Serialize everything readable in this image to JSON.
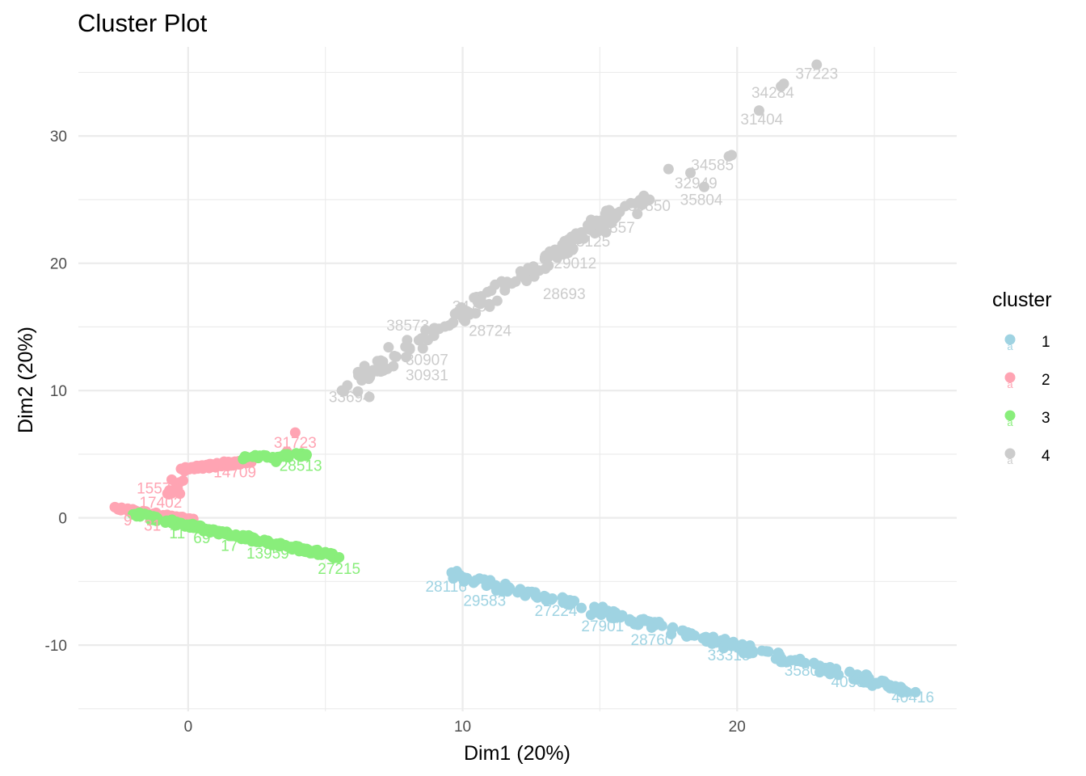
{
  "chart_data": {
    "type": "scatter",
    "title": "Cluster Plot",
    "xlabel": "Dim1 (20%)",
    "ylabel": "Dim2 (20%)",
    "xlim": [
      -4,
      28
    ],
    "ylim": [
      -15.2,
      37
    ],
    "x_ticks": [
      0,
      10,
      20
    ],
    "y_ticks": [
      -10,
      0,
      10,
      20,
      30
    ],
    "grid": true,
    "legend": {
      "title": "cluster",
      "position": "right",
      "entries": [
        {
          "label": "1",
          "color": "#9fd3e2"
        },
        {
          "label": "2",
          "color": "#ffa4b3"
        },
        {
          "label": "3",
          "color": "#89ee7b"
        },
        {
          "label": "4",
          "color": "#cccccc"
        }
      ]
    },
    "series": [
      {
        "name": "1",
        "color": "#9fd3e2",
        "segments": [
          {
            "from": [
              9.6,
              -4.4
            ],
            "to": [
              26.5,
              -13.7
            ],
            "count": 180,
            "spread": 0.6
          }
        ],
        "points": [
          [
            9.6,
            -4.3
          ],
          [
            9.9,
            -4.5
          ],
          [
            10.4,
            -5.1
          ],
          [
            11.2,
            -5.3
          ],
          [
            12.1,
            -5.6
          ],
          [
            13.0,
            -6.2
          ],
          [
            14.8,
            -7.0
          ],
          [
            16.5,
            -8.0
          ],
          [
            18.2,
            -9.0
          ],
          [
            19.6,
            -9.8
          ],
          [
            21.5,
            -10.6
          ],
          [
            22.8,
            -11.4
          ],
          [
            24.1,
            -12.1
          ],
          [
            24.8,
            -12.6
          ],
          [
            26.0,
            -13.4
          ],
          [
            26.5,
            -13.7
          ]
        ],
        "labels": [
          {
            "text": "28116",
            "x": 9.4,
            "y": -5.8
          },
          {
            "text": "29583",
            "x": 10.8,
            "y": -6.9
          },
          {
            "text": "27224",
            "x": 13.4,
            "y": -7.7
          },
          {
            "text": "27901",
            "x": 15.1,
            "y": -8.9
          },
          {
            "text": "28760",
            "x": 16.9,
            "y": -10.0
          },
          {
            "text": "33315",
            "x": 19.7,
            "y": -11.2
          },
          {
            "text": "35805",
            "x": 22.5,
            "y": -12.4
          },
          {
            "text": "40932",
            "x": 24.2,
            "y": -13.3
          },
          {
            "text": "40416",
            "x": 26.4,
            "y": -14.5
          }
        ]
      },
      {
        "name": "2",
        "color": "#ffa4b3",
        "segments": [
          {
            "from": [
              -0.2,
              3.8
            ],
            "to": [
              2.3,
              4.5
            ],
            "count": 90,
            "spread": 0.35
          },
          {
            "from": [
              -2.6,
              0.8
            ],
            "to": [
              0.2,
              -0.2
            ],
            "count": 70,
            "spread": 0.25
          },
          {
            "from": [
              -0.7,
              1.9
            ],
            "to": [
              -0.2,
              2.9
            ],
            "count": 8,
            "spread": 0.3
          }
        ],
        "points": [
          [
            3.9,
            6.7
          ],
          [
            3.6,
            5.2
          ],
          [
            2.1,
            4.8
          ],
          [
            -0.6,
            2.0
          ],
          [
            -0.3,
            1.9
          ],
          [
            -0.6,
            3.0
          ]
        ],
        "labels": [
          {
            "text": "31723",
            "x": 3.9,
            "y": 5.5
          },
          {
            "text": "14709",
            "x": 1.7,
            "y": 3.2
          },
          {
            "text": "15570",
            "x": -1.1,
            "y": 1.9
          },
          {
            "text": "17402",
            "x": -1.0,
            "y": 0.8
          },
          {
            "text": "9",
            "x": -2.2,
            "y": -0.6
          },
          {
            "text": "31",
            "x": -1.3,
            "y": -1.0
          }
        ]
      },
      {
        "name": "3",
        "color": "#89ee7b",
        "segments": [
          {
            "from": [
              -2.0,
              0.3
            ],
            "to": [
              5.5,
              -3.1
            ],
            "count": 170,
            "spread": 0.35
          },
          {
            "from": [
              2.0,
              4.7
            ],
            "to": [
              4.4,
              5.0
            ],
            "count": 30,
            "spread": 0.35
          }
        ],
        "points": [
          [
            4.3,
            5.0
          ],
          [
            4.1,
            4.8
          ],
          [
            3.2,
            4.4
          ],
          [
            5.5,
            -3.1
          ],
          [
            5.0,
            -2.7
          ]
        ],
        "labels": [
          {
            "text": "28513",
            "x": 4.1,
            "y": 3.7
          },
          {
            "text": "13959",
            "x": 2.9,
            "y": -3.2
          },
          {
            "text": "27215",
            "x": 5.5,
            "y": -4.4
          },
          {
            "text": "11",
            "x": -0.4,
            "y": -1.6
          },
          {
            "text": "69",
            "x": 0.5,
            "y": -2.0
          },
          {
            "text": "17",
            "x": 1.5,
            "y": -2.6
          }
        ]
      },
      {
        "name": "4",
        "color": "#cccccc",
        "segments": [
          {
            "from": [
              5.6,
              9.9
            ],
            "to": [
              16.6,
              25.2
            ],
            "count": 150,
            "spread": 1.0
          }
        ],
        "points": [
          [
            22.9,
            35.6
          ],
          [
            21.6,
            33.9
          ],
          [
            21.7,
            34.1
          ],
          [
            20.8,
            32.0
          ],
          [
            19.8,
            28.5
          ],
          [
            19.7,
            28.4
          ],
          [
            18.8,
            26.0
          ],
          [
            18.3,
            27.1
          ],
          [
            17.5,
            27.4
          ],
          [
            16.6,
            25.3
          ],
          [
            16.3,
            24.7
          ],
          [
            5.6,
            10.0
          ],
          [
            5.8,
            10.4
          ],
          [
            6.6,
            9.5
          ],
          [
            7.3,
            13.4
          ]
        ],
        "labels": [
          {
            "text": "37223",
            "x": 22.9,
            "y": 34.5
          },
          {
            "text": "34284",
            "x": 21.3,
            "y": 33.0
          },
          {
            "text": "31404",
            "x": 20.9,
            "y": 30.9
          },
          {
            "text": "34585",
            "x": 19.1,
            "y": 27.3
          },
          {
            "text": "32949",
            "x": 18.5,
            "y": 25.9
          },
          {
            "text": "35804",
            "x": 18.7,
            "y": 24.6
          },
          {
            "text": "30850",
            "x": 16.8,
            "y": 24.1
          },
          {
            "text": "29857",
            "x": 15.5,
            "y": 22.4
          },
          {
            "text": "23125",
            "x": 14.6,
            "y": 21.3
          },
          {
            "text": "29012",
            "x": 14.1,
            "y": 19.6
          },
          {
            "text": "28693",
            "x": 13.7,
            "y": 17.2
          },
          {
            "text": "28724",
            "x": 11.0,
            "y": 14.3
          },
          {
            "text": "34757",
            "x": 10.4,
            "y": 16.2
          },
          {
            "text": "38573",
            "x": 8.0,
            "y": 14.7
          },
          {
            "text": "30931",
            "x": 8.7,
            "y": 10.8
          },
          {
            "text": "30907",
            "x": 8.7,
            "y": 12.0
          },
          {
            "text": "33694",
            "x": 5.9,
            "y": 9.1
          }
        ]
      }
    ]
  }
}
